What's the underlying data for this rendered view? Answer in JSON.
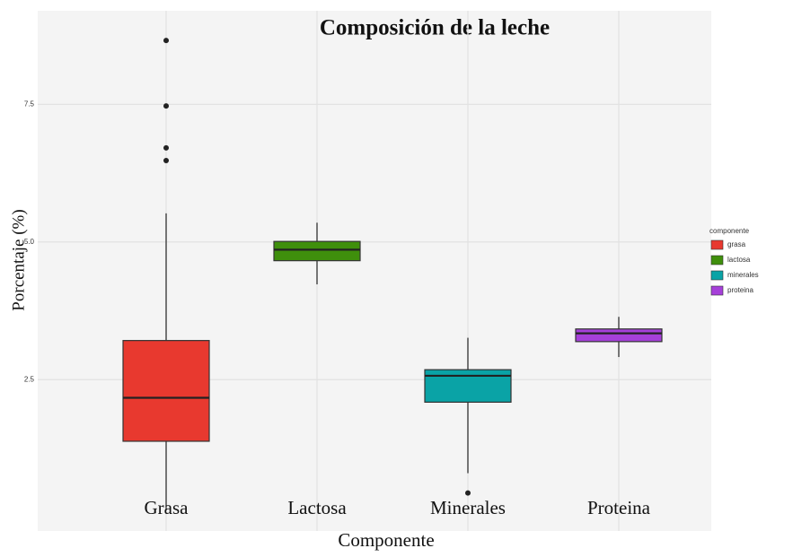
{
  "chart_data": {
    "type": "box",
    "title": "Composición de la leche",
    "x_label": "Componente",
    "y_label": "Porcentaje (%)",
    "categories": [
      "Grasa",
      "Lactosa",
      "Minerales",
      "Proteina"
    ],
    "colors": [
      "#e8392f",
      "#3f8f0c",
      "#0aa3a6",
      "#a640d9"
    ],
    "boxes": [
      {
        "whisker_low": 0.12,
        "q1": 1.38,
        "median": 2.17,
        "q3": 3.21,
        "whisker_high": 5.52,
        "outliers": [
          8.66,
          7.47,
          6.71,
          6.48
        ]
      },
      {
        "whisker_low": 4.23,
        "q1": 4.66,
        "median": 4.86,
        "q3": 5.01,
        "whisker_high": 5.35,
        "outliers": []
      },
      {
        "whisker_low": 0.8,
        "q1": 2.09,
        "median": 2.57,
        "q3": 2.68,
        "whisker_high": 3.26,
        "outliers": [
          0.44
        ]
      },
      {
        "whisker_low": 2.91,
        "q1": 3.19,
        "median": 3.34,
        "q3": 3.42,
        "whisker_high": 3.64,
        "outliers": []
      }
    ],
    "ylim": [
      -0.25,
      9.2
    ],
    "yticks": [
      2.5,
      {
        "value": 5,
        "label": "5.0"
      },
      7.5
    ],
    "grid": true,
    "legend": {
      "title": "componente",
      "labels": [
        "grasa",
        "lactosa",
        "minerales",
        "proteina"
      ],
      "position": "right"
    }
  }
}
